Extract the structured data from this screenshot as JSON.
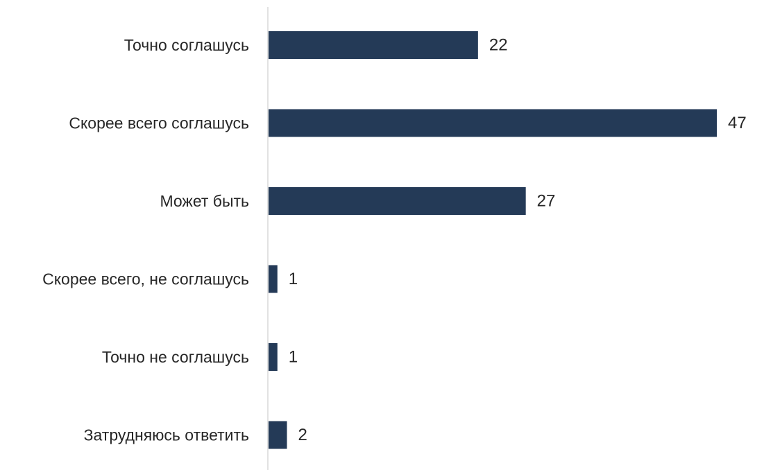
{
  "chart_data": {
    "type": "bar",
    "orientation": "horizontal",
    "categories": [
      "Точно соглашусь",
      "Скорее всего соглашусь",
      "Может быть",
      "Скорее всего, не соглашусь",
      "Точно не соглашусь",
      "Затрудняюсь ответить"
    ],
    "values": [
      22,
      47,
      27,
      1,
      1,
      2
    ],
    "value_labels": [
      "22",
      "47",
      "27",
      "1",
      "1",
      "2"
    ],
    "xlim": [
      0,
      47
    ],
    "grid": false,
    "legend": "none",
    "bar_color": "#243a57",
    "axis_color": "#d9d9d9",
    "text_color": "#262626"
  }
}
